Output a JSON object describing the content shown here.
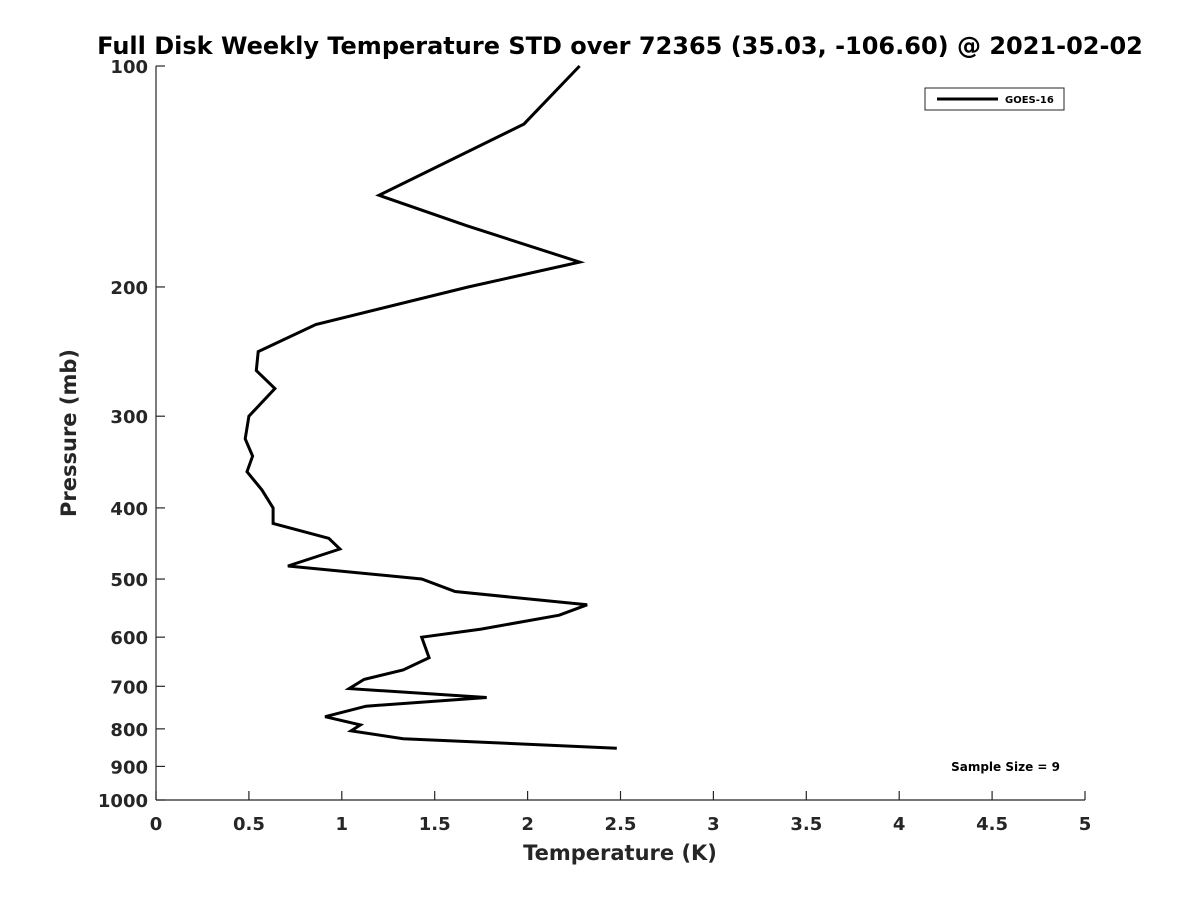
{
  "chart_data": {
    "type": "line",
    "title": "Full Disk Weekly Temperature STD over 72365 (35.03, -106.60) @ 2021-02-02",
    "xlabel": "Temperature (K)",
    "ylabel": "Pressure (mb)",
    "xlim": [
      0,
      5
    ],
    "ylim": [
      100,
      1000
    ],
    "y_scale": "log",
    "y_direction": "reversed",
    "grid": false,
    "legend_placement": "top-right",
    "xticks": [
      "0",
      "0.5",
      "1",
      "1.5",
      "2",
      "2.5",
      "3",
      "3.5",
      "4",
      "4.5",
      "5"
    ],
    "xtick_values": [
      0,
      0.5,
      1,
      1.5,
      2,
      2.5,
      3,
      3.5,
      4,
      4.5,
      5
    ],
    "yticks": [
      "100",
      "200",
      "300",
      "400",
      "500",
      "600",
      "700",
      "800",
      "900",
      "1000"
    ],
    "ytick_values": [
      100,
      200,
      300,
      400,
      500,
      600,
      700,
      800,
      900,
      1000
    ],
    "annotation": "Sample Size = 9",
    "series": [
      {
        "name": "GOES-16",
        "color": "#000000",
        "points": [
          {
            "x": 2.28,
            "p": 100
          },
          {
            "x": 1.98,
            "p": 120
          },
          {
            "x": 1.2,
            "p": 150
          },
          {
            "x": 1.67,
            "p": 165
          },
          {
            "x": 2.28,
            "p": 185
          },
          {
            "x": 1.68,
            "p": 200
          },
          {
            "x": 0.86,
            "p": 225
          },
          {
            "x": 0.55,
            "p": 245
          },
          {
            "x": 0.54,
            "p": 260
          },
          {
            "x": 0.64,
            "p": 275
          },
          {
            "x": 0.5,
            "p": 300
          },
          {
            "x": 0.48,
            "p": 322
          },
          {
            "x": 0.52,
            "p": 340
          },
          {
            "x": 0.49,
            "p": 357
          },
          {
            "x": 0.57,
            "p": 378
          },
          {
            "x": 0.63,
            "p": 400
          },
          {
            "x": 0.63,
            "p": 420
          },
          {
            "x": 0.93,
            "p": 440
          },
          {
            "x": 0.99,
            "p": 455
          },
          {
            "x": 0.71,
            "p": 480
          },
          {
            "x": 1.43,
            "p": 500
          },
          {
            "x": 1.61,
            "p": 520
          },
          {
            "x": 2.32,
            "p": 542
          },
          {
            "x": 2.17,
            "p": 560
          },
          {
            "x": 1.75,
            "p": 585
          },
          {
            "x": 1.43,
            "p": 600
          },
          {
            "x": 1.47,
            "p": 640
          },
          {
            "x": 1.33,
            "p": 665
          },
          {
            "x": 1.12,
            "p": 685
          },
          {
            "x": 1.04,
            "p": 705
          },
          {
            "x": 1.78,
            "p": 725
          },
          {
            "x": 1.13,
            "p": 745
          },
          {
            "x": 0.91,
            "p": 770
          },
          {
            "x": 1.1,
            "p": 790
          },
          {
            "x": 1.05,
            "p": 805
          },
          {
            "x": 1.33,
            "p": 825
          },
          {
            "x": 2.48,
            "p": 850
          }
        ]
      }
    ]
  }
}
